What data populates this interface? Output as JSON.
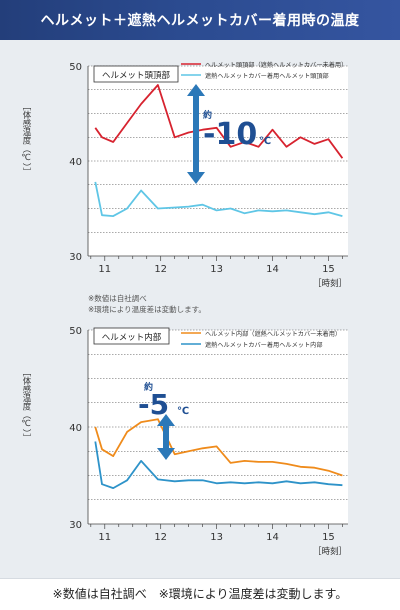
{
  "banner": {
    "title": "ヘルメット＋遮熱ヘルメットカバー着用時の温度"
  },
  "notes_small": [
    "※数値は自社調べ",
    "※環境により温度差は変動します。"
  ],
  "footer": "※数値は自社調べ　※環境により温度差は変動します。",
  "colors": {
    "accent_red": "#d7232f",
    "accent_orange": "#ef8b1b",
    "accent_blue": "#2e93c9",
    "arrow": "#2b78b8"
  },
  "chart_data": [
    {
      "type": "line",
      "title": "ヘルメット頭頂部",
      "ylabel": "［体感温度（℃）］",
      "xlabel": "［時刻］",
      "xlim": [
        10.7,
        15.35
      ],
      "ylim": [
        30,
        50
      ],
      "xticks": [
        11,
        12,
        13,
        14,
        15
      ],
      "yticks": [
        30,
        40,
        50
      ],
      "grid": "dashed",
      "legend": "top-right",
      "annotation": {
        "prefix": "約",
        "value": "-10",
        "unit": "℃"
      },
      "series": [
        {
          "name": "ヘルメット頭頂部（遮熱ヘルメットカバー未着用）",
          "color": "#d7232f",
          "x": [
            10.83,
            10.95,
            11.15,
            11.4,
            11.65,
            11.95,
            12.25,
            12.5,
            12.75,
            13.0,
            13.25,
            13.5,
            13.75,
            14.0,
            14.25,
            14.5,
            14.75,
            15.0,
            15.25
          ],
          "y": [
            43.5,
            42.5,
            42.0,
            44.0,
            46.0,
            48.0,
            42.5,
            43.0,
            43.3,
            43.5,
            41.5,
            42.0,
            41.5,
            43.3,
            41.5,
            42.5,
            41.8,
            42.3,
            40.3
          ]
        },
        {
          "name": "遮熱ヘルメットカバー着用ヘルメット頭頂部",
          "color": "#5fc6e6",
          "x": [
            10.83,
            10.95,
            11.15,
            11.4,
            11.65,
            11.95,
            12.25,
            12.5,
            12.75,
            13.0,
            13.25,
            13.5,
            13.75,
            14.0,
            14.25,
            14.5,
            14.75,
            15.0,
            15.25
          ],
          "y": [
            37.8,
            34.3,
            34.2,
            35.0,
            36.9,
            35.0,
            35.1,
            35.2,
            35.4,
            34.8,
            35.0,
            34.5,
            34.8,
            34.7,
            34.8,
            34.6,
            34.4,
            34.6,
            34.2
          ]
        }
      ]
    },
    {
      "type": "line",
      "title": "ヘルメット内部",
      "ylabel": "［体感温度（℃）］",
      "xlabel": "［時刻］",
      "xlim": [
        10.7,
        15.35
      ],
      "ylim": [
        30,
        50
      ],
      "xticks": [
        11,
        12,
        13,
        14,
        15
      ],
      "yticks": [
        30,
        40,
        50
      ],
      "grid": "dashed",
      "legend": "top-right",
      "annotation": {
        "prefix": "約",
        "value": "-5",
        "unit": "℃"
      },
      "series": [
        {
          "name": "ヘルメット内部（遮熱ヘルメットカバー未着用）",
          "color": "#ef8b1b",
          "x": [
            10.83,
            10.95,
            11.15,
            11.4,
            11.65,
            11.95,
            12.25,
            12.5,
            12.75,
            13.0,
            13.25,
            13.5,
            13.75,
            14.0,
            14.25,
            14.5,
            14.75,
            15.0,
            15.25
          ],
          "y": [
            40.0,
            37.7,
            37.0,
            39.5,
            40.5,
            40.8,
            37.2,
            37.5,
            37.8,
            38.0,
            36.3,
            36.5,
            36.4,
            36.4,
            36.2,
            35.9,
            35.8,
            35.5,
            35.0
          ]
        },
        {
          "name": "遮熱ヘルメットカバー着用ヘルメット内部",
          "color": "#2e93c9",
          "x": [
            10.83,
            10.95,
            11.15,
            11.4,
            11.65,
            11.95,
            12.25,
            12.5,
            12.75,
            13.0,
            13.25,
            13.5,
            13.75,
            14.0,
            14.25,
            14.5,
            14.75,
            15.0,
            15.25
          ],
          "y": [
            38.5,
            34.1,
            33.7,
            34.5,
            36.5,
            34.6,
            34.4,
            34.5,
            34.5,
            34.2,
            34.3,
            34.2,
            34.3,
            34.2,
            34.4,
            34.2,
            34.3,
            34.1,
            34.0
          ]
        }
      ]
    }
  ]
}
